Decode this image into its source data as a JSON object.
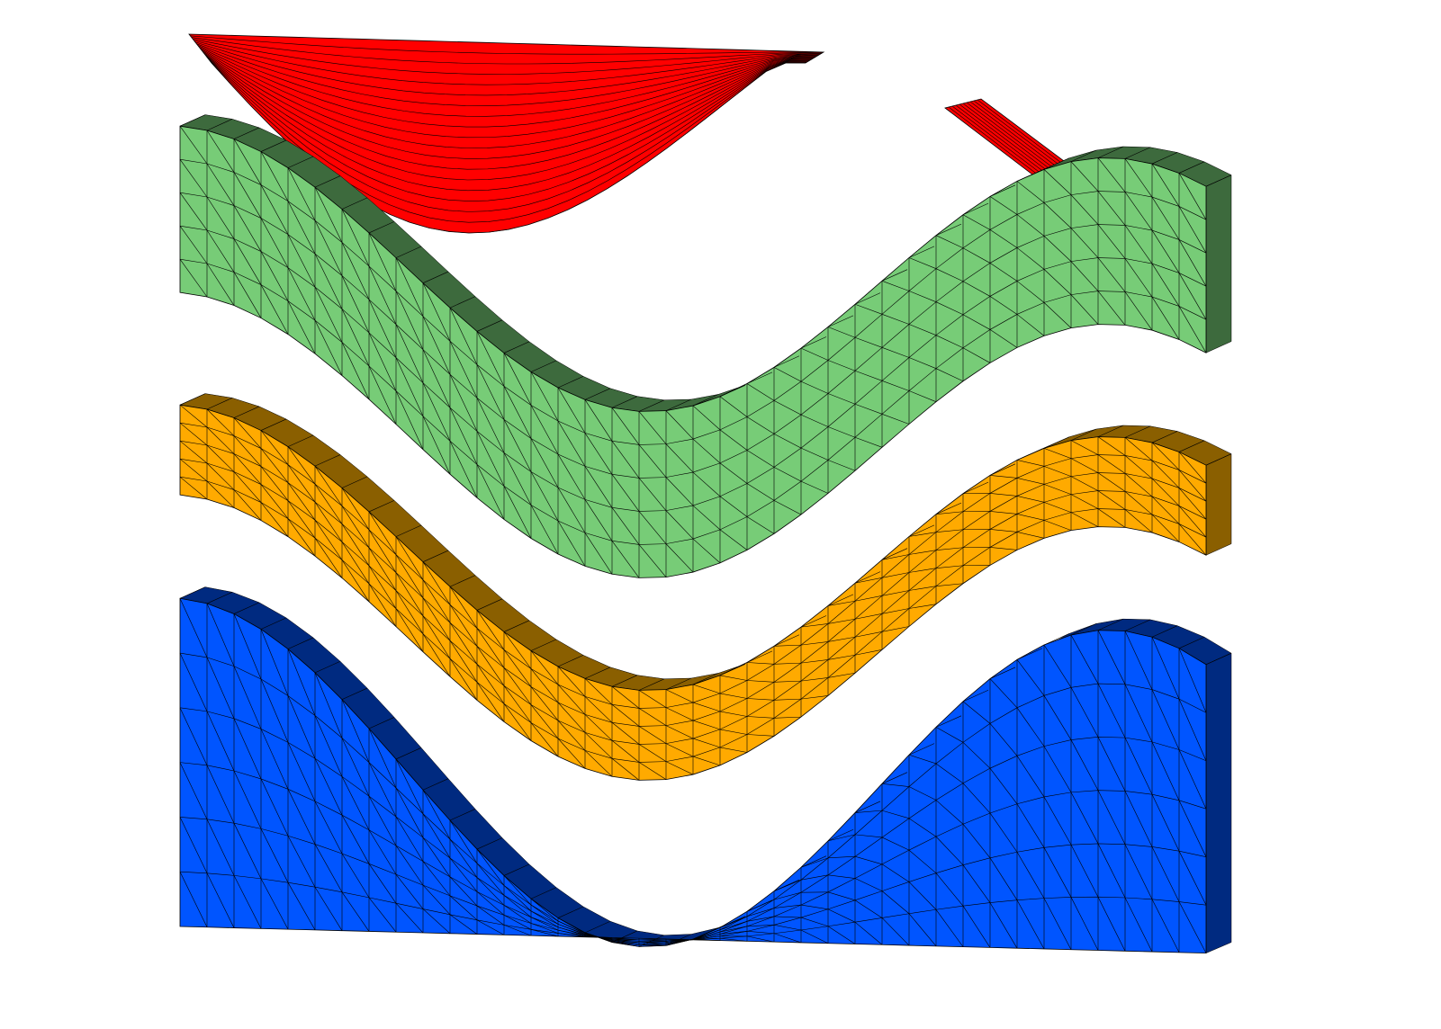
{
  "layers": [
    {
      "id": "red-top",
      "color": "#ff0000",
      "side_color": "#7a0000"
    },
    {
      "id": "green",
      "color": "#77cc77",
      "side_color": "#3d6a3d"
    },
    {
      "id": "orange",
      "color": "#ffaa00",
      "side_color": "#8a5f00"
    },
    {
      "id": "blue",
      "color": "#0055ff",
      "side_color": "#002a80"
    }
  ]
}
